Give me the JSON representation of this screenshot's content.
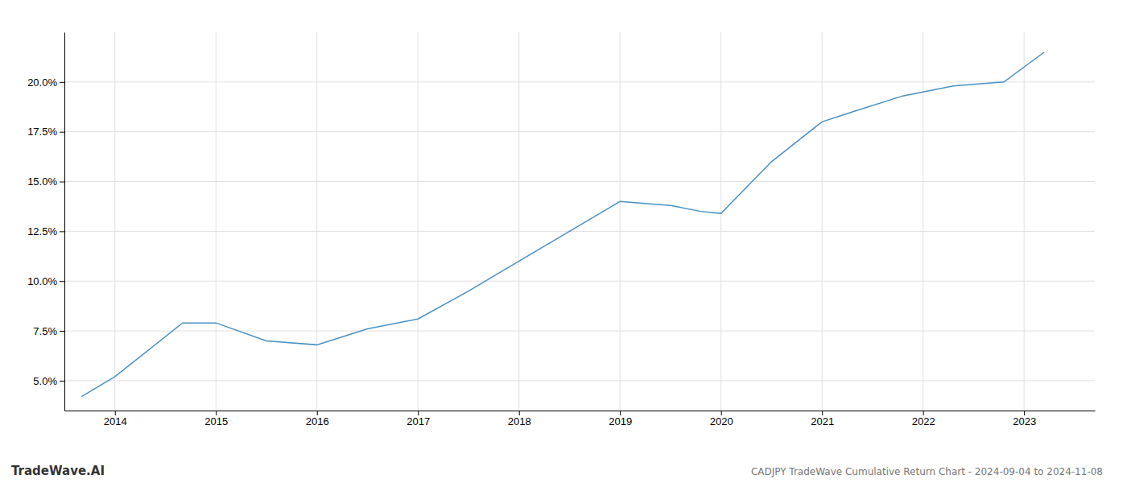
{
  "chart_data": {
    "type": "line",
    "title": "CADJPY TradeWave Cumulative Return Chart - 2024-09-04 to 2024-11-08",
    "annotations": [
      "TradeWave.AI"
    ],
    "x": [
      2013.67,
      2014.0,
      2014.67,
      2015.0,
      2015.5,
      2016.0,
      2016.5,
      2017.0,
      2017.5,
      2018.0,
      2018.5,
      2019.0,
      2019.5,
      2019.8,
      2020.0,
      2020.5,
      2021.0,
      2021.3,
      2021.8,
      2022.3,
      2022.8,
      2023.2
    ],
    "values": [
      4.2,
      5.2,
      7.9,
      7.9,
      7.0,
      6.8,
      7.6,
      8.1,
      9.5,
      11.0,
      12.5,
      14.0,
      13.8,
      13.5,
      13.4,
      16.0,
      18.0,
      18.5,
      19.3,
      19.8,
      20.0,
      21.5
    ],
    "color": "#4a90c4",
    "xlim": [
      2013.5,
      2023.7
    ],
    "ylim": [
      3.5,
      22.5
    ],
    "xticks": [
      2014,
      2015,
      2016,
      2017,
      2018,
      2019,
      2020,
      2021,
      2022,
      2023
    ],
    "yticks": [
      {
        "value": 5.0,
        "label": "5.0%"
      },
      {
        "value": 7.5,
        "label": "7.5%"
      },
      {
        "value": 10.0,
        "label": "10.0%"
      },
      {
        "value": 12.5,
        "label": "12.5%"
      },
      {
        "value": 15.0,
        "label": "15.0%"
      },
      {
        "value": 17.5,
        "label": "17.5%"
      },
      {
        "value": 20.0,
        "label": "20.0%"
      }
    ],
    "grid": true
  }
}
